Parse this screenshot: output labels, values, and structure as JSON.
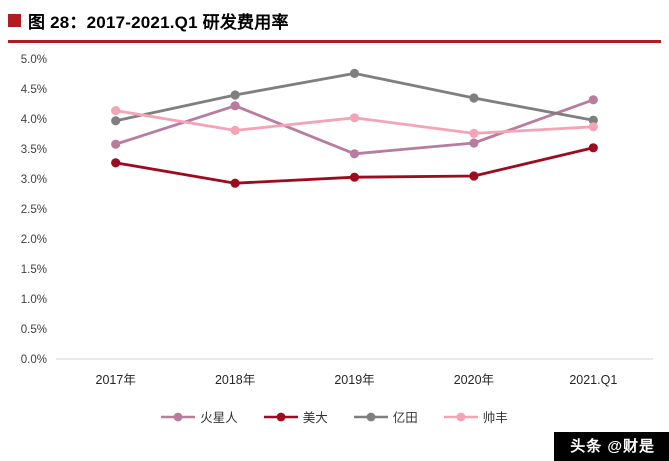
{
  "figure": {
    "title": "图 28：2017-2021.Q1 研发费用率"
  },
  "chart_data": {
    "type": "line",
    "title": "2017-2021.Q1 研发费用率",
    "xlabel": "",
    "ylabel": "",
    "categories": [
      "2017年",
      "2018年",
      "2019年",
      "2020年",
      "2021.Q1"
    ],
    "series": [
      {
        "name": "火星人",
        "color": "#b87c9e",
        "values": [
          3.58,
          4.22,
          3.42,
          3.6,
          4.32
        ]
      },
      {
        "name": "美大",
        "color": "#9e0b1e",
        "values": [
          3.27,
          2.93,
          3.03,
          3.05,
          3.52
        ]
      },
      {
        "name": "亿田",
        "color": "#7f7f7f",
        "values": [
          3.97,
          4.4,
          4.76,
          4.35,
          3.98
        ]
      },
      {
        "name": "帅丰",
        "color": "#f3a5b7",
        "values": [
          4.14,
          3.81,
          4.02,
          3.76,
          3.87
        ]
      }
    ],
    "ylim": [
      0,
      5
    ],
    "ytick_step": 0.5,
    "ytick_labels": [
      "0.0%",
      "0.5%",
      "1.0%",
      "1.5%",
      "2.0%",
      "2.5%",
      "3.0%",
      "3.5%",
      "4.0%",
      "4.5%",
      "5.0%"
    ],
    "grid": false,
    "legend_position": "bottom",
    "marker": "circle"
  },
  "watermark": {
    "text": "头条 @财是",
    "bg": "#000000",
    "fg": "#ffffff"
  },
  "colors": {
    "accent_rule": "#b01c21",
    "axis_line": "#d9d9d9",
    "tick_text": "#404040"
  }
}
